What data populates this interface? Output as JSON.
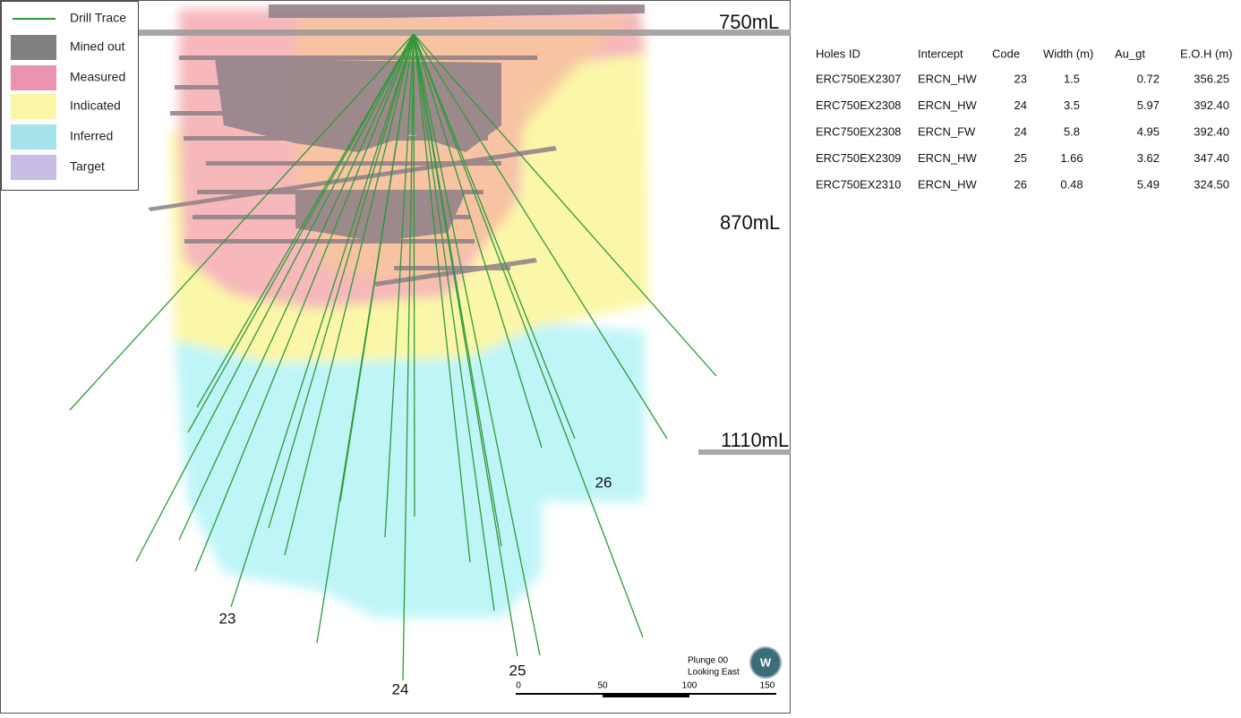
{
  "legend": [
    {
      "label": "Drill Trace"
    },
    {
      "label": "Mined out"
    },
    {
      "label": "Measured"
    },
    {
      "label": "Indicated"
    },
    {
      "label": "Inferred"
    },
    {
      "label": "Target"
    }
  ],
  "levels": [
    "750mL",
    "870mL",
    "1110mL"
  ],
  "holes": [
    "23",
    "24",
    "25",
    "26"
  ],
  "view": {
    "plunge": "Plunge 00",
    "direction": "Looking East",
    "compass": "W"
  },
  "scale": [
    "0",
    "50",
    "100",
    "150"
  ],
  "table": {
    "headers": [
      "Holes ID",
      "Intercept",
      "Code",
      "Width (m)",
      "Au_gt",
      "E.O.H (m)"
    ],
    "rows": [
      [
        "ERC750EX2307",
        "ERCN_HW",
        "23",
        "1.5",
        "0.72",
        "356.25"
      ],
      [
        "ERC750EX2308",
        "ERCN_HW",
        "24",
        "3.5",
        "5.97",
        "392.40"
      ],
      [
        "ERC750EX2308",
        "ERCN_FW",
        "24",
        "5.8",
        "4.95",
        "392.40"
      ],
      [
        "ERC750EX2309",
        "ERCN_HW",
        "25",
        "1.66",
        "3.62",
        "347.40"
      ],
      [
        "ERC750EX2310",
        "ERCN_HW",
        "26",
        "0.48",
        "5.49",
        "324.50"
      ]
    ]
  }
}
